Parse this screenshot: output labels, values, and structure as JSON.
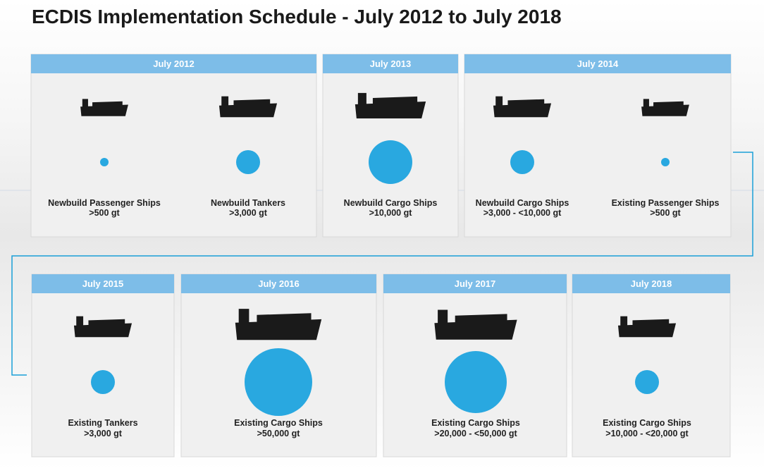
{
  "title": "ECDIS Implementation Schedule - July 2012 to July 2018",
  "rows": [
    {
      "panels": [
        {
          "date": "July 2012",
          "items": [
            {
              "name": "Newbuild Passenger Ships",
              "size": ">500 gt"
            },
            {
              "name": "Newbuild Tankers",
              "size": ">3,000 gt"
            }
          ]
        },
        {
          "date": "July 2013",
          "items": [
            {
              "name": "Newbuild Cargo Ships",
              "size": ">10,000 gt"
            }
          ]
        },
        {
          "date": "July 2014",
          "items": [
            {
              "name": "Newbuild Cargo Ships",
              "size": ">3,000 - <10,000 gt"
            },
            {
              "name": "Existing Passenger Ships",
              "size": ">500 gt"
            }
          ]
        }
      ]
    },
    {
      "panels": [
        {
          "date": "July 2015",
          "items": [
            {
              "name": "Existing Tankers",
              "size": ">3,000 gt"
            }
          ]
        },
        {
          "date": "July 2016",
          "items": [
            {
              "name": "Existing Cargo Ships",
              "size": ">50,000 gt"
            }
          ]
        },
        {
          "date": "July 2017",
          "items": [
            {
              "name": "Existing Cargo Ships",
              "size": ">20,000 - <50,000 gt"
            }
          ]
        },
        {
          "date": "July 2018",
          "items": [
            {
              "name": "Existing Cargo Ships",
              "size": ">10,000 - <20,000 gt"
            }
          ]
        }
      ]
    }
  ]
}
